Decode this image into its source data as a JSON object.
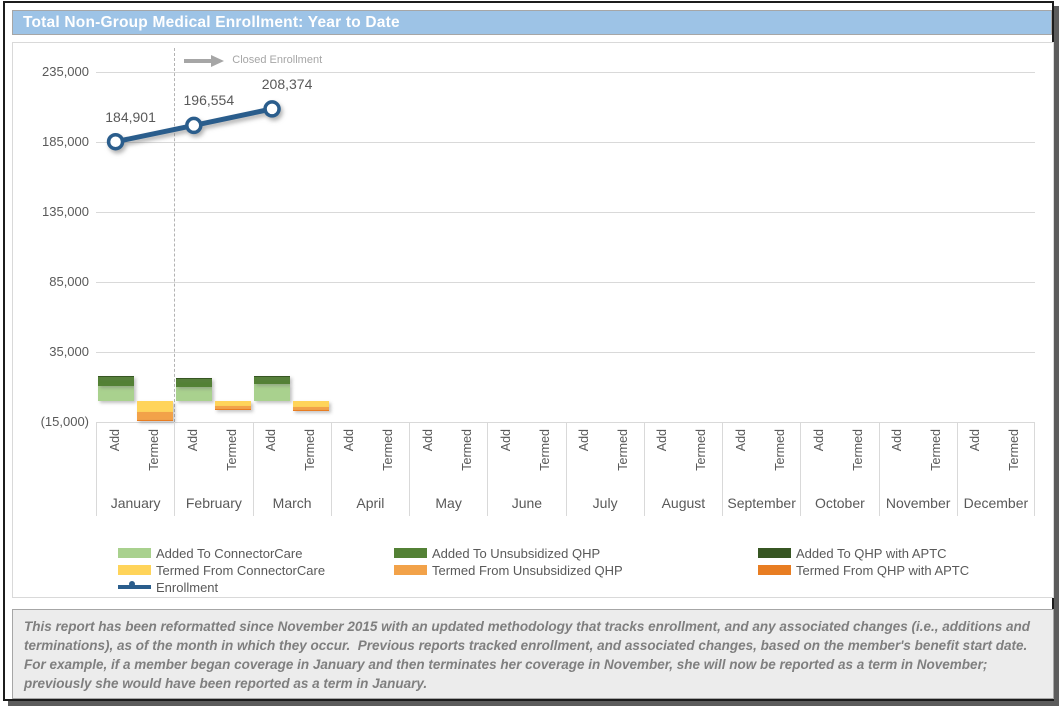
{
  "page": {
    "title": "Total Non-Group Medical Enrollment: Year to Date",
    "note": "This report has been reformatted since November 2015 with an updated methodology that tracks enrollment, and any associated changes (i.e., additions and terminations), as of the month in which they occur.  Previous reports tracked enrollment, and associated changes, based on the member's benefit start date.  For example, if a member began coverage in January and then terminates her coverage in November, she will now be reported as a term in November; previously she would have been reported as a term in January."
  },
  "colors": {
    "title_bg": "#9dc3e6",
    "title_text": "#ffffff",
    "grid": "#d9d9d9",
    "axis_text": "#595959",
    "annotation_gray": "#a6a6a6",
    "line_blue": "#2a5d8c",
    "light_green": "#a9d18e",
    "med_green": "#538135",
    "dark_green": "#375623",
    "yellow": "#ffd45a",
    "orange": "#f2a249",
    "dark_orange": "#e87d22",
    "note_text": "#7f7f7f",
    "note_bg": "#ececec"
  },
  "chart_data": {
    "type": "bar",
    "subtype": "stacked-bars-with-line-overlay",
    "title": "Total Non-Group Medical Enrollment: Year to Date",
    "categories": [
      "January",
      "February",
      "March",
      "April",
      "May",
      "June",
      "July",
      "August",
      "September",
      "October",
      "November",
      "December"
    ],
    "sub_categories": [
      "Add",
      "Termed"
    ],
    "ylim": [
      -15000,
      250000
    ],
    "grid": true,
    "y_ticks": [
      {
        "label": "235,000",
        "value": 235000
      },
      {
        "label": "185,000",
        "value": 185000
      },
      {
        "label": "135,000",
        "value": 135000
      },
      {
        "label": "85,000",
        "value": 85000
      },
      {
        "label": "35,000",
        "value": 35000
      },
      {
        "label": "(15,000)",
        "value": -15000
      }
    ],
    "annotation": {
      "label": "Closed Enrollment",
      "after_month": "January"
    },
    "bar_series": [
      {
        "name": "Added To ConnectorCare",
        "swatch": "light_green",
        "column": "Add",
        "values": [
          10200,
          10000,
          12200,
          0,
          0,
          0,
          0,
          0,
          0,
          0,
          0,
          0
        ]
      },
      {
        "name": "Added To Unsubsidized QHP",
        "swatch": "med_green",
        "column": "Add",
        "values": [
          6800,
          5500,
          4600,
          0,
          0,
          0,
          0,
          0,
          0,
          0,
          0,
          0
        ]
      },
      {
        "name": "Added To QHP with APTC",
        "swatch": "dark_green",
        "column": "Add",
        "values": [
          600,
          500,
          800,
          0,
          0,
          0,
          0,
          0,
          0,
          0,
          0,
          0
        ]
      },
      {
        "name": "Termed From ConnectorCare",
        "swatch": "yellow",
        "column": "Termed",
        "values": [
          -7900,
          -3900,
          -4700,
          0,
          0,
          0,
          0,
          0,
          0,
          0,
          0,
          0
        ]
      },
      {
        "name": "Termed From Unsubsidized QHP",
        "swatch": "orange",
        "column": "Termed",
        "values": [
          -6300,
          -2400,
          -2200,
          0,
          0,
          0,
          0,
          0,
          0,
          0,
          0,
          0
        ]
      },
      {
        "name": "Termed From QHP with APTC",
        "swatch": "dark_orange",
        "column": "Termed",
        "values": [
          -300,
          -150,
          -150,
          0,
          0,
          0,
          0,
          0,
          0,
          0,
          0,
          0
        ]
      }
    ],
    "line_series": {
      "name": "Enrollment",
      "swatch": "line_blue",
      "values": [
        184901,
        196554,
        208374
      ],
      "labels": [
        "184,901",
        "196,554",
        "208,374"
      ]
    },
    "legend": {
      "position": "bottom",
      "columns": [
        [
          {
            "label": "Added To ConnectorCare",
            "swatch": "light_green"
          },
          {
            "label": "Termed From ConnectorCare",
            "swatch": "yellow"
          },
          {
            "label": "Enrollment",
            "swatch": "line"
          }
        ],
        [
          {
            "label": "Added To Unsubsidized QHP",
            "swatch": "med_green"
          },
          {
            "label": "Termed From Unsubsidized QHP",
            "swatch": "orange"
          }
        ],
        [
          {
            "label": "Added To QHP with APTC",
            "swatch": "dark_green"
          },
          {
            "label": "Termed From QHP with APTC",
            "swatch": "dark_orange"
          }
        ]
      ]
    }
  }
}
